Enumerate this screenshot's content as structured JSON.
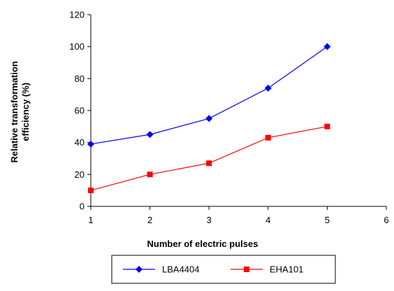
{
  "chart_data": {
    "type": "line",
    "title": "",
    "xlabel": "Number of electric pulses",
    "ylabel": [
      "Relative transformation",
      "efficiency (%)"
    ],
    "xlim": [
      1,
      6
    ],
    "ylim": [
      0,
      120
    ],
    "x_ticks": [
      1,
      2,
      3,
      4,
      5,
      6
    ],
    "y_ticks": [
      0,
      20,
      40,
      60,
      80,
      100,
      120
    ],
    "grid": false,
    "legend_position": "bottom",
    "series": [
      {
        "name": "LBA4404",
        "color": "#0000ff",
        "marker": "diamond",
        "x": [
          1,
          2,
          3,
          4,
          5
        ],
        "y": [
          39,
          45,
          55,
          74,
          100
        ]
      },
      {
        "name": "EHA101",
        "color": "#ff0000",
        "marker": "square",
        "x": [
          1,
          2,
          3,
          4,
          5
        ],
        "y": [
          10,
          20,
          27,
          43,
          50
        ]
      }
    ]
  }
}
